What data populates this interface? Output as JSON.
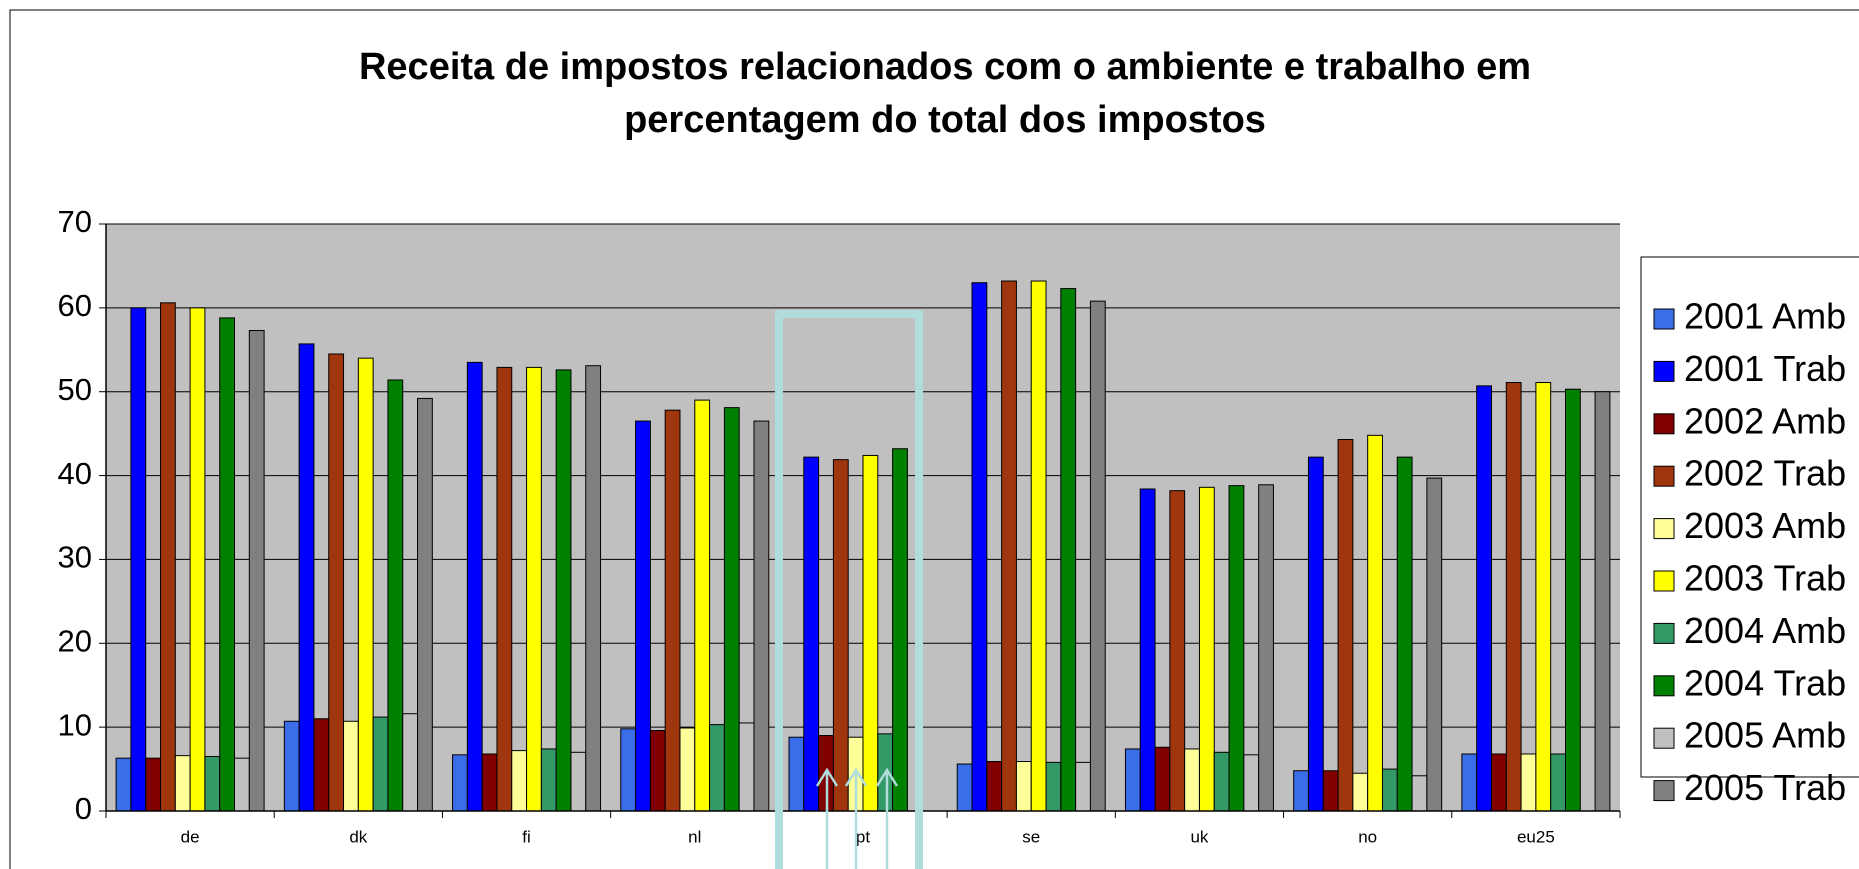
{
  "chart_data": {
    "type": "bar",
    "title": [
      "Receita de impostos relacionados com o ambiente e trabalho em",
      "percentagem do total dos impostos"
    ],
    "categories": [
      "de",
      "dk",
      "fi",
      "nl",
      "pt",
      "se",
      "uk",
      "no",
      "eu25"
    ],
    "ylim": [
      0,
      70
    ],
    "yticks": [
      0,
      10,
      20,
      30,
      40,
      50,
      60,
      70
    ],
    "grid": true,
    "legend": "right",
    "series": [
      {
        "name": "2001 Amb",
        "color": "#3a6ee8",
        "values": [
          6.3,
          10.7,
          6.7,
          9.8,
          8.8,
          5.6,
          7.4,
          4.8,
          6.8
        ]
      },
      {
        "name": "2001 Trab",
        "color": "#0000ff",
        "values": [
          60,
          55.7,
          53.5,
          46.5,
          42.2,
          63,
          38.4,
          42.2,
          50.7
        ]
      },
      {
        "name": "2002 Amb",
        "color": "#800000",
        "values": [
          6.3,
          11,
          6.8,
          9.6,
          9,
          5.9,
          7.6,
          4.8,
          6.8
        ]
      },
      {
        "name": "2002 Trab",
        "color": "#a0360e",
        "values": [
          60.6,
          54.5,
          52.9,
          47.8,
          41.9,
          63.2,
          38.2,
          44.3,
          51.1
        ]
      },
      {
        "name": "2003 Amb",
        "color": "#ffff99",
        "values": [
          6.6,
          10.7,
          7.2,
          9.9,
          8.8,
          5.9,
          7.4,
          4.5,
          6.8
        ]
      },
      {
        "name": "2003 Trab",
        "color": "#ffff00",
        "values": [
          60,
          54,
          52.9,
          49,
          42.4,
          63.2,
          38.6,
          44.8,
          51.1
        ]
      },
      {
        "name": "2004 Amb",
        "color": "#339966",
        "values": [
          6.5,
          11.2,
          7.4,
          10.3,
          9.2,
          5.8,
          7,
          5,
          6.8
        ]
      },
      {
        "name": "2004 Trab",
        "color": "#008000",
        "values": [
          58.8,
          51.4,
          52.6,
          48.1,
          43.2,
          62.3,
          38.8,
          42.2,
          50.3
        ]
      },
      {
        "name": "2005 Amb",
        "color": "#c0c0c0",
        "values": [
          6.3,
          11.6,
          7,
          10.5,
          null,
          5.8,
          6.7,
          4.2,
          null
        ]
      },
      {
        "name": "2005 Trab",
        "color": "#808080",
        "values": [
          57.3,
          49.2,
          53.1,
          46.5,
          null,
          60.8,
          38.9,
          39.7,
          50
        ]
      }
    ]
  }
}
